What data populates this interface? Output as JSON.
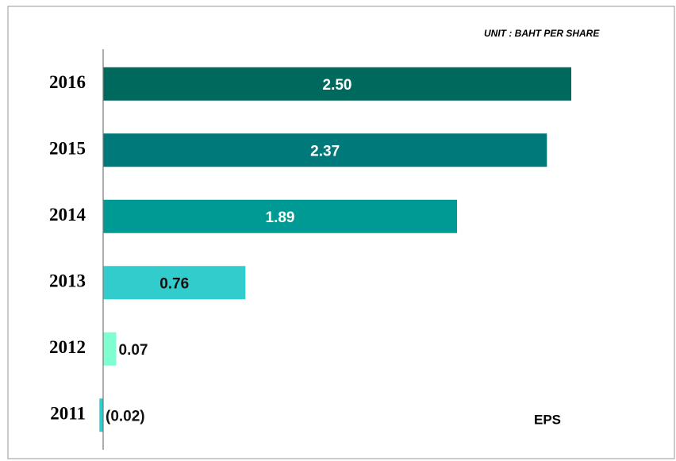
{
  "chart_data": {
    "type": "hbar",
    "subtitle": "UNIT : BAHT PER SHARE",
    "x_label": "EPS",
    "categories": [
      "2016",
      "2015",
      "2014",
      "2013",
      "2012",
      "2011"
    ],
    "values": [
      2.5,
      2.37,
      1.89,
      0.76,
      0.07,
      -0.02
    ],
    "value_labels": [
      "2.50",
      "2.37",
      "1.89",
      "0.76",
      "0.07",
      "(0.02)"
    ],
    "colors": [
      "#00695e",
      "#00797a",
      "#009a95",
      "#33cccc",
      "#7fffd0",
      "#33cccc"
    ],
    "xlim": [
      -0.5,
      3.0
    ]
  }
}
